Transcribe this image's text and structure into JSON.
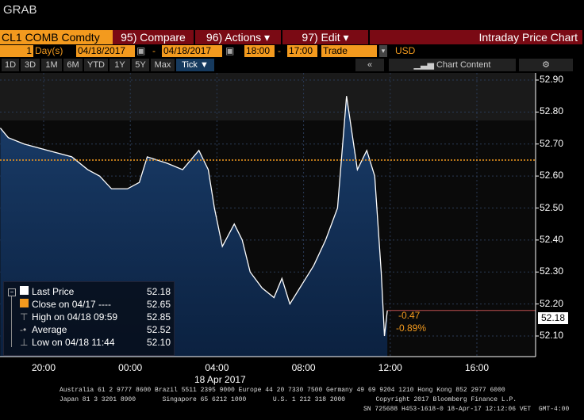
{
  "title": "GRAB",
  "toolbar": {
    "security": "CL1 COMB Comdty",
    "compare": "95) Compare",
    "actions": "96) Actions",
    "edit": "97) Edit",
    "chart_name": "Intraday Price Chart"
  },
  "range": {
    "count": "1",
    "unit": "Day(s)",
    "start_date": "04/18/2017",
    "end_date": "04/18/2017",
    "start_time": "18:00",
    "end_time": "17:00",
    "type": "Trade",
    "currency": "USD",
    "dash": "-"
  },
  "periods": [
    "1D",
    "3D",
    "1M",
    "6M",
    "YTD",
    "1Y",
    "5Y",
    "Max",
    "Tick ▼"
  ],
  "chart_content": "Chart Content",
  "colors": {
    "accent": "#f39a1e",
    "toolbar_red": "#7a0a14",
    "area": "#12325a",
    "line": "#ffffff"
  },
  "chart_data": {
    "type": "area",
    "xlabel": "18 Apr 2017",
    "x_ticks": [
      "20:00",
      "00:00",
      "04:00",
      "08:00",
      "12:00",
      "16:00"
    ],
    "y_ticks": [
      "52.90",
      "52.80",
      "52.70",
      "52.60",
      "52.50",
      "52.40",
      "52.30",
      "52.20",
      "52.10"
    ],
    "ylim": [
      52.05,
      52.93
    ],
    "series": [
      {
        "name": "Last Price",
        "x": [
          "18:00",
          "18:22",
          "19:06",
          "20:12",
          "21:18",
          "22:02",
          "22:35",
          "23:08",
          "23:52",
          "00:25",
          "00:47",
          "01:42",
          "02:25",
          "03:10",
          "03:36",
          "03:53",
          "04:15",
          "04:48",
          "05:10",
          "05:32",
          "06:05",
          "06:38",
          "07:00",
          "07:22",
          "07:55",
          "08:28",
          "09:01",
          "09:34",
          "09:59",
          "10:29",
          "10:55",
          "11:17",
          "11:35",
          "11:44",
          "11:52"
        ],
        "y": [
          52.75,
          52.72,
          52.7,
          52.68,
          52.66,
          52.62,
          52.6,
          52.56,
          52.56,
          52.58,
          52.66,
          52.64,
          52.62,
          52.68,
          52.62,
          52.5,
          52.38,
          52.45,
          52.4,
          52.3,
          52.25,
          52.22,
          52.28,
          52.2,
          52.26,
          52.32,
          52.4,
          52.5,
          52.85,
          52.62,
          52.68,
          52.6,
          52.3,
          52.1,
          52.18
        ]
      }
    ],
    "reference_line": {
      "name": "Close on 04/17",
      "value": 52.65
    },
    "last_price_label": "52.18",
    "change": "-0.47",
    "change_pct": "-0.89%"
  },
  "legend": [
    {
      "label": "Last Price",
      "value": "52.18"
    },
    {
      "label": "Close on 04/17 ----",
      "value": "52.65"
    },
    {
      "label": "High on 04/18 09:59",
      "value": "52.85"
    },
    {
      "label": "Average",
      "value": "52.52"
    },
    {
      "label": "Low on 04/18 11:44",
      "value": "52.10"
    }
  ],
  "footer": {
    "line1": "Australia 61 2 9777 8600 Brazil 5511 2395 9000 Europe 44 20 7330 7500 Germany 49 69 9204 1210 Hong Kong 852 2977 6000",
    "line2": "Japan 81 3 3201 8900       Singapore 65 6212 1000       U.S. 1 212 318 2000        Copyright 2017 Bloomberg Finance L.P.",
    "line3": "SN 725688 H453-1618-0 18-Apr-17 12:12:06 VET  GMT-4:00"
  }
}
